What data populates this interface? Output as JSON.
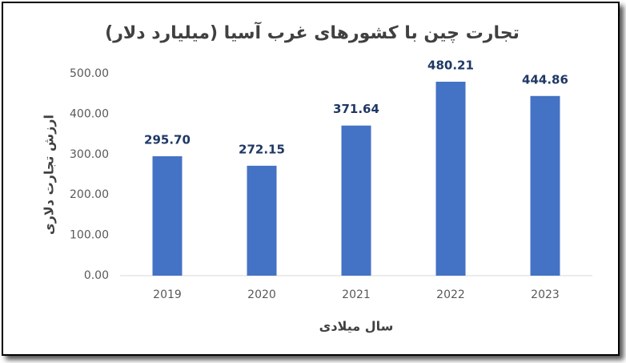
{
  "chart_data": {
    "type": "bar",
    "title": "تجارت چین با کشورهای غرب آسیا (میلیارد دلار)",
    "x_label": "سال میلادی",
    "y_label": "ارزش تجارت دلاری",
    "categories": [
      "2019",
      "2020",
      "2021",
      "2022",
      "2023"
    ],
    "values": [
      295.7,
      272.15,
      371.64,
      480.21,
      444.86
    ],
    "value_labels": [
      "295.70",
      "272.15",
      "371.64",
      "480.21",
      "444.86"
    ],
    "color": "#4472c4",
    "ylim": [
      0,
      500
    ],
    "yticks": [
      {
        "value": 0,
        "label": "0.00"
      },
      {
        "value": 100,
        "label": "100.00"
      },
      {
        "value": 200,
        "label": "200.00"
      },
      {
        "value": 300,
        "label": "300.00"
      },
      {
        "value": 400,
        "label": "400.00"
      },
      {
        "value": 500,
        "label": "500.00"
      }
    ],
    "grid": false
  }
}
